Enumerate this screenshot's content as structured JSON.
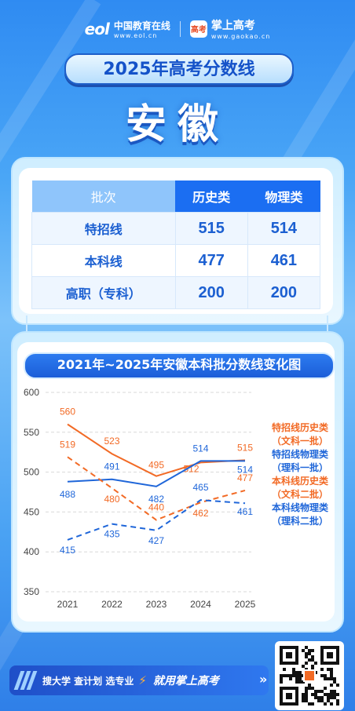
{
  "brand": {
    "eol_logo": "eol",
    "eol_name": "中国教育在线",
    "eol_url": "www.eol.cn",
    "gaokao_icon": "高考",
    "gaokao_name": "掌上高考",
    "gaokao_url": "www.gaokao.cn"
  },
  "title": "2025年高考分数线",
  "province": "安徽",
  "table": {
    "headers": [
      "批次",
      "历史类",
      "物理类"
    ],
    "rows": [
      {
        "label": "特招线",
        "history": "515",
        "physics": "514"
      },
      {
        "label": "本科线",
        "history": "477",
        "physics": "461"
      },
      {
        "label": "高职（专科）",
        "history": "200",
        "physics": "200"
      }
    ]
  },
  "chart_data": {
    "type": "line",
    "title": "2021年~2025年安徽本科批分数线变化图",
    "categories": [
      "2021",
      "2022",
      "2023",
      "2024",
      "2025"
    ],
    "y_ticks": [
      "600",
      "550",
      "500",
      "450",
      "400",
      "350"
    ],
    "ylim": [
      350,
      600
    ],
    "grid": true,
    "legend_position": "right",
    "series": [
      {
        "name": "特招线历史类（文科一批）",
        "values": [
          560,
          523,
          495,
          512,
          515
        ],
        "color": "#f26a25",
        "dashed": false
      },
      {
        "name": "特招线物理类（理科一批）",
        "values": [
          488,
          491,
          482,
          514,
          514
        ],
        "color": "#1f66d9",
        "dashed": false
      },
      {
        "name": "本科线历史类（文科二批）",
        "values": [
          519,
          480,
          440,
          462,
          477
        ],
        "color": "#f26a25",
        "dashed": true
      },
      {
        "name": "本科线物理类（理科二批）",
        "values": [
          415,
          435,
          427,
          465,
          461
        ],
        "color": "#1f66d9",
        "dashed": true
      }
    ]
  },
  "legend": {
    "items": [
      {
        "line1": "特招线历史类",
        "line2": "（文科一批）",
        "color": "#f26a25"
      },
      {
        "line1": "特招线物理类",
        "line2": "（理科一批）",
        "color": "#1f66d9"
      },
      {
        "line1": "本科线历史类",
        "line2": "（文科二批）",
        "color": "#f26a25"
      },
      {
        "line1": "本科线物理类",
        "line2": "（理科二批）",
        "color": "#1f66d9"
      }
    ]
  },
  "footer": {
    "slogan": "搜大学  查计划  选专业",
    "accent": "就用掌上高考",
    "arrows": "»",
    "qr_icon": "qr-code"
  },
  "colors": {
    "orange": "#f26a25",
    "blue": "#1f66d9",
    "brand_blue": "#1b6ef2"
  }
}
